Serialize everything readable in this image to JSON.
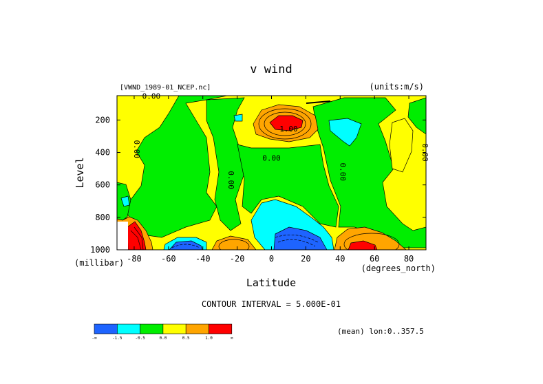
{
  "chart_data": {
    "type": "contour",
    "title": "v wind",
    "subtitle_left": "[VWND_1989-01_NCEP.nc]",
    "subtitle_right": "(units:m/s)",
    "xlabel": "Latitude",
    "ylabel": "Level",
    "x_units": "(degrees_north)",
    "y_units": "(millibar)",
    "xlim": [
      -90,
      90
    ],
    "ylim": [
      1000,
      50
    ],
    "x_ticks": [
      -80,
      -60,
      -40,
      -20,
      0,
      20,
      40,
      60,
      80
    ],
    "y_ticks": [
      200,
      400,
      600,
      800,
      1000
    ],
    "contour_interval_text": "CONTOUR INTERVAL = 5.000E-01",
    "footer_text": "(mean) lon:0..357.5",
    "colorbar": {
      "colors": [
        "#1e64ff",
        "#00ffff",
        "#00ee00",
        "#ffff00",
        "#ffa500",
        "#ff0000"
      ],
      "labels": [
        "-∞",
        "-1.5",
        "-0.5",
        "0.0",
        "0.5",
        "1.0",
        "∞"
      ]
    },
    "contour_labels": [
      {
        "text": "0.00",
        "lat": -70,
        "lev": 70
      },
      {
        "text": "1.00",
        "lat": 10,
        "lev": 270
      },
      {
        "text": "0.00",
        "lat": -80,
        "lev": 380
      },
      {
        "text": "0.00",
        "lat": 0,
        "lev": 450
      },
      {
        "text": "0.00",
        "lat": -25,
        "lev": 570
      },
      {
        "text": "0.00",
        "lat": 40,
        "lev": 520
      },
      {
        "text": "0.00",
        "lat": 88,
        "lev": 400
      }
    ]
  }
}
